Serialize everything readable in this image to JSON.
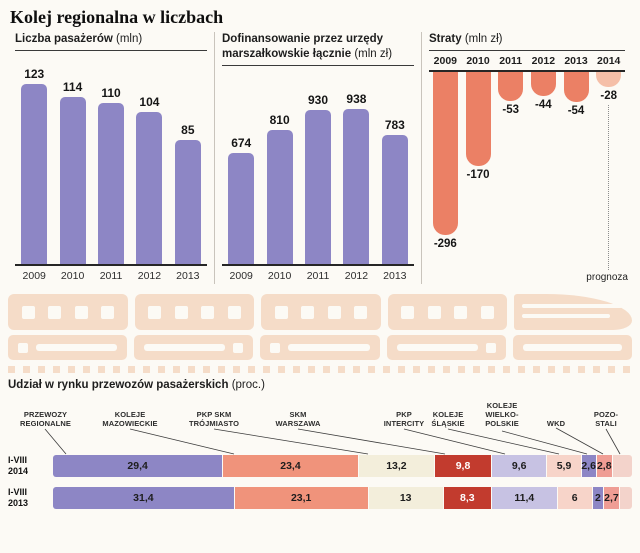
{
  "page_title": "Kolej regionalna w liczbach",
  "colors": {
    "bar_purple": "#8d86c5",
    "loss_bar": "#eb8065",
    "loss_bar_forecast": "#f5bfa8",
    "train_decor": "#f5dcc8",
    "axis": "#262626"
  },
  "chart_data": [
    {
      "id": "passengers",
      "type": "bar",
      "title": "Liczba pasażerów",
      "unit": "(mln)",
      "categories": [
        "2009",
        "2010",
        "2011",
        "2012",
        "2013"
      ],
      "values": [
        123,
        114,
        110,
        104,
        85
      ],
      "ylim": [
        0,
        130
      ],
      "bar_color": "#8d86c5"
    },
    {
      "id": "funding",
      "type": "bar",
      "title": "Dofinansowanie przez urzędy marszałkowskie łącznie",
      "unit": "(mln zł)",
      "categories": [
        "2009",
        "2010",
        "2011",
        "2012",
        "2013"
      ],
      "values": [
        674,
        810,
        930,
        938,
        783
      ],
      "ylim": [
        0,
        1000
      ],
      "bar_color": "#8d86c5"
    },
    {
      "id": "losses",
      "type": "bar",
      "title": "Straty",
      "unit": "(mln zł)",
      "categories": [
        "2009",
        "2010",
        "2011",
        "2012",
        "2013",
        "2014"
      ],
      "values": [
        -296,
        -170,
        -53,
        -44,
        -54,
        -28
      ],
      "forecast_category": "2014",
      "forecast_note": "prognoza",
      "ylim": [
        -320,
        0
      ],
      "bar_color": "#eb8065",
      "forecast_bar_color": "#f5bfa8"
    },
    {
      "id": "market-share",
      "type": "stacked-bar",
      "title": "Udział w rynku przewozów pasażerskich",
      "unit": "(proc.)",
      "operators": [
        {
          "label": "PRZEWOZY\nREGIONALNE"
        },
        {
          "label": "KOLEJE\nMAZOWIECKIE"
        },
        {
          "label": "PKP SKM\nTRÓJMIASTO"
        },
        {
          "label": "SKM\nWARSZAWA"
        },
        {
          "label": "PKP\nINTERCITY"
        },
        {
          "label": "KOLEJE\nŚLĄSKIE"
        },
        {
          "label": "KOLEJE\nWIELKO-\nPOLSKIE"
        },
        {
          "label": "WKD"
        },
        {
          "label": "POZO-\nSTALI"
        }
      ],
      "segment_colors": [
        "#8d86c5",
        "#f0937b",
        "#f3eedb",
        "#c23b2e",
        "#c7c2e3",
        "#f7d4c9",
        "#8d86c5",
        "#ef9d94",
        "#f3d3cb"
      ],
      "segment_text_colors": [
        "#1d1d1d",
        "#1d1d1d",
        "#1d1d1d",
        "#ffffff",
        "#1d1d1d",
        "#1d1d1d",
        "#1d1d1d",
        "#1d1d1d",
        "#1d1d1d"
      ],
      "rows": [
        {
          "label": "I-VIII\n2014",
          "values": [
            29.4,
            23.4,
            13.2,
            9.8,
            9.6,
            5.9,
            2.6,
            2.8,
            null
          ],
          "labels": [
            "29,4",
            "23,4",
            "13,2",
            "9,8",
            "9,6",
            "5,9",
            "2,6",
            "2,8",
            ""
          ]
        },
        {
          "label": "I-VIII\n2013",
          "values": [
            31.4,
            23.1,
            13,
            8.3,
            11.4,
            6,
            2,
            2.7,
            null
          ],
          "labels": [
            "31,4",
            "23,1",
            "13",
            "8,3",
            "11,4",
            "6",
            "2",
            "2,7",
            ""
          ]
        }
      ]
    }
  ],
  "decor": {
    "train_illustration": "stylized passenger train silhouettes"
  }
}
